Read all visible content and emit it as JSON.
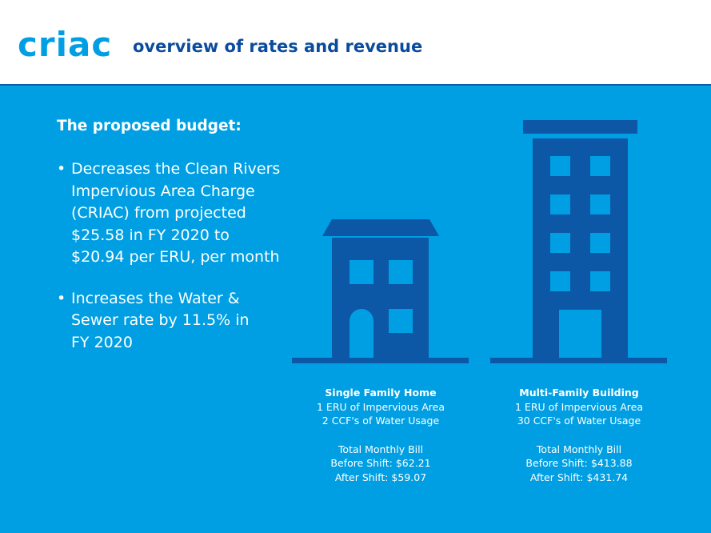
{
  "header": {
    "logo": "criac",
    "subtitle": "overview of rates and revenue"
  },
  "intro": "The proposed budget:",
  "bullets": [
    "Decreases the Clean Rivers Impervious Area Charge (CRIAC) from projected $25.58 in FY 2020 to $20.94 per ERU, per month",
    "Increases the Water & Sewer rate by 11.5% in FY 2020"
  ],
  "single_family": {
    "title": "Single Family Home",
    "line1": "1 ERU of Impervious Area",
    "line2": "2 CCF's of Water Usage",
    "total_label": "Total Monthly Bill",
    "before": "Before Shift: $62.21",
    "after": "After Shift: $59.07"
  },
  "multi_family": {
    "title": "Multi-Family Building",
    "line1": "1 ERU of Impervious Area",
    "line2": "30 CCF's of Water Usage",
    "total_label": "Total Monthly Bill",
    "before": "Before Shift: $413.88",
    "after": "After Shift: $431.74"
  },
  "colors": {
    "background": "#009fe3",
    "building": "#0d57a7",
    "header_text": "#0b4b9e",
    "logo": "#009fe3"
  },
  "icons": [
    "house-icon",
    "apartment-building-icon"
  ]
}
